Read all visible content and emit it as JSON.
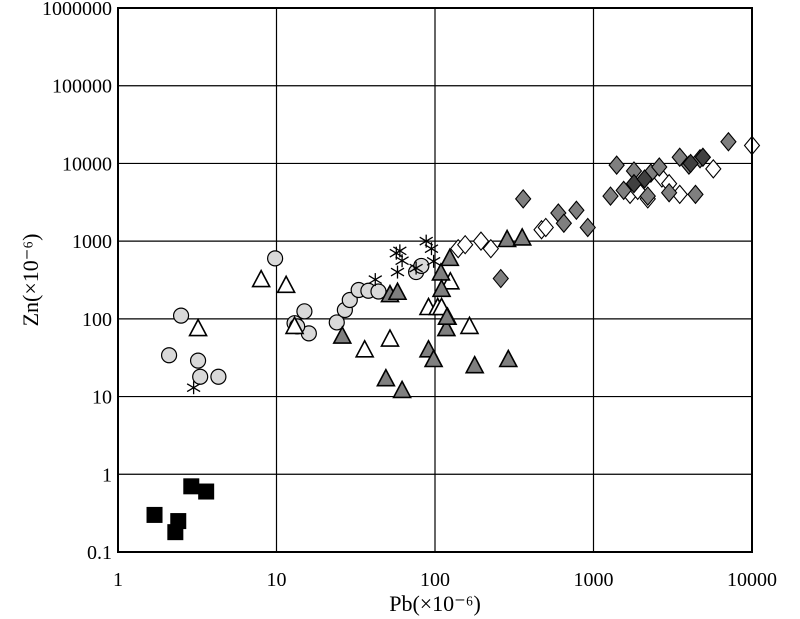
{
  "chart_data": {
    "type": "scatter",
    "title": "",
    "xlabel": "Pb(×10⁻⁶)",
    "ylabel": "Zn(×10⁻⁶)",
    "x_scale": "log",
    "y_scale": "log",
    "xlim": [
      1,
      10000
    ],
    "ylim": [
      0.1,
      1000000
    ],
    "grid": true,
    "x_ticks": [
      "1",
      "10",
      "100",
      "1000",
      "10000"
    ],
    "y_ticks": [
      "0.1",
      "1",
      "10",
      "100",
      "1000",
      "10000",
      "100000",
      "1000000"
    ],
    "series": [
      {
        "marker": "square",
        "fill": "#000000",
        "points": [
          [
            1.7,
            0.3
          ],
          [
            2.4,
            0.25
          ],
          [
            2.3,
            0.18
          ],
          [
            2.9,
            0.7
          ],
          [
            3.6,
            0.6
          ]
        ]
      },
      {
        "marker": "circle",
        "fill": "#d9d9d9",
        "points": [
          [
            2.1,
            34
          ],
          [
            2.5,
            110
          ],
          [
            3.2,
            29
          ],
          [
            3.3,
            18
          ],
          [
            4.3,
            18
          ],
          [
            9.8,
            600
          ],
          [
            13,
            88
          ],
          [
            15,
            125
          ],
          [
            16,
            65
          ],
          [
            24,
            90
          ],
          [
            27,
            130
          ],
          [
            29,
            175
          ],
          [
            33,
            235
          ],
          [
            38,
            230
          ],
          [
            44,
            225
          ],
          [
            76,
            400
          ],
          [
            82,
            480
          ],
          [
            13.5,
            80
          ]
        ]
      },
      {
        "marker": "asterisk",
        "fill": "#000000",
        "points": [
          [
            3,
            13
          ],
          [
            42,
            320
          ],
          [
            57,
            700
          ],
          [
            60,
            750
          ],
          [
            62,
            560
          ],
          [
            58,
            400
          ],
          [
            76,
            450
          ],
          [
            88,
            1000
          ],
          [
            95,
            800
          ],
          [
            98,
            550
          ]
        ]
      },
      {
        "marker": "triangle",
        "fill": "#ffffff",
        "points": [
          [
            3.2,
            75
          ],
          [
            8,
            320
          ],
          [
            11.5,
            270
          ],
          [
            13,
            80
          ],
          [
            36,
            40
          ],
          [
            52,
            55
          ],
          [
            91,
            140
          ],
          [
            104,
            140
          ],
          [
            110,
            140
          ],
          [
            120,
            105
          ],
          [
            125,
            300
          ],
          [
            165,
            80
          ]
        ]
      },
      {
        "marker": "triangle",
        "fill": "#7f7f7f",
        "points": [
          [
            26,
            60
          ],
          [
            49,
            17
          ],
          [
            52,
            205
          ],
          [
            58,
            220
          ],
          [
            62,
            12
          ],
          [
            91,
            40
          ],
          [
            98,
            30
          ],
          [
            109,
            390
          ],
          [
            110,
            240
          ],
          [
            118,
            75
          ],
          [
            119,
            105
          ],
          [
            124,
            600
          ],
          [
            178,
            25
          ],
          [
            285,
            1050
          ],
          [
            290,
            30
          ],
          [
            355,
            1100
          ]
        ]
      },
      {
        "marker": "diamond",
        "fill": "#ffffff",
        "points": [
          [
            140,
            800
          ],
          [
            155,
            900
          ],
          [
            195,
            1000
          ],
          [
            225,
            800
          ],
          [
            470,
            1400
          ],
          [
            500,
            1500
          ],
          [
            1700,
            4000
          ],
          [
            1900,
            4500
          ],
          [
            2200,
            3500
          ],
          [
            2700,
            6500
          ],
          [
            3000,
            5500
          ],
          [
            3500,
            4000
          ],
          [
            5700,
            8500
          ],
          [
            10000,
            17000
          ]
        ]
      },
      {
        "marker": "diamond",
        "fill": "#7f7f7f",
        "points": [
          [
            260,
            330
          ],
          [
            360,
            3500
          ],
          [
            600,
            2300
          ],
          [
            650,
            1700
          ],
          [
            780,
            2500
          ],
          [
            920,
            1500
          ],
          [
            1280,
            3800
          ],
          [
            1400,
            9500
          ],
          [
            1550,
            4500
          ],
          [
            1800,
            8000
          ],
          [
            2200,
            3800
          ],
          [
            2300,
            7500
          ],
          [
            2600,
            9000
          ],
          [
            3000,
            4200
          ],
          [
            3500,
            12000
          ],
          [
            4000,
            9500
          ],
          [
            4700,
            11500
          ],
          [
            4400,
            4000
          ],
          [
            7100,
            19000
          ]
        ]
      },
      {
        "marker": "diamond",
        "fill": "#404040",
        "points": [
          [
            1800,
            5500
          ],
          [
            4100,
            10000
          ],
          [
            4900,
            12000
          ],
          [
            2100,
            6300
          ]
        ]
      }
    ]
  }
}
